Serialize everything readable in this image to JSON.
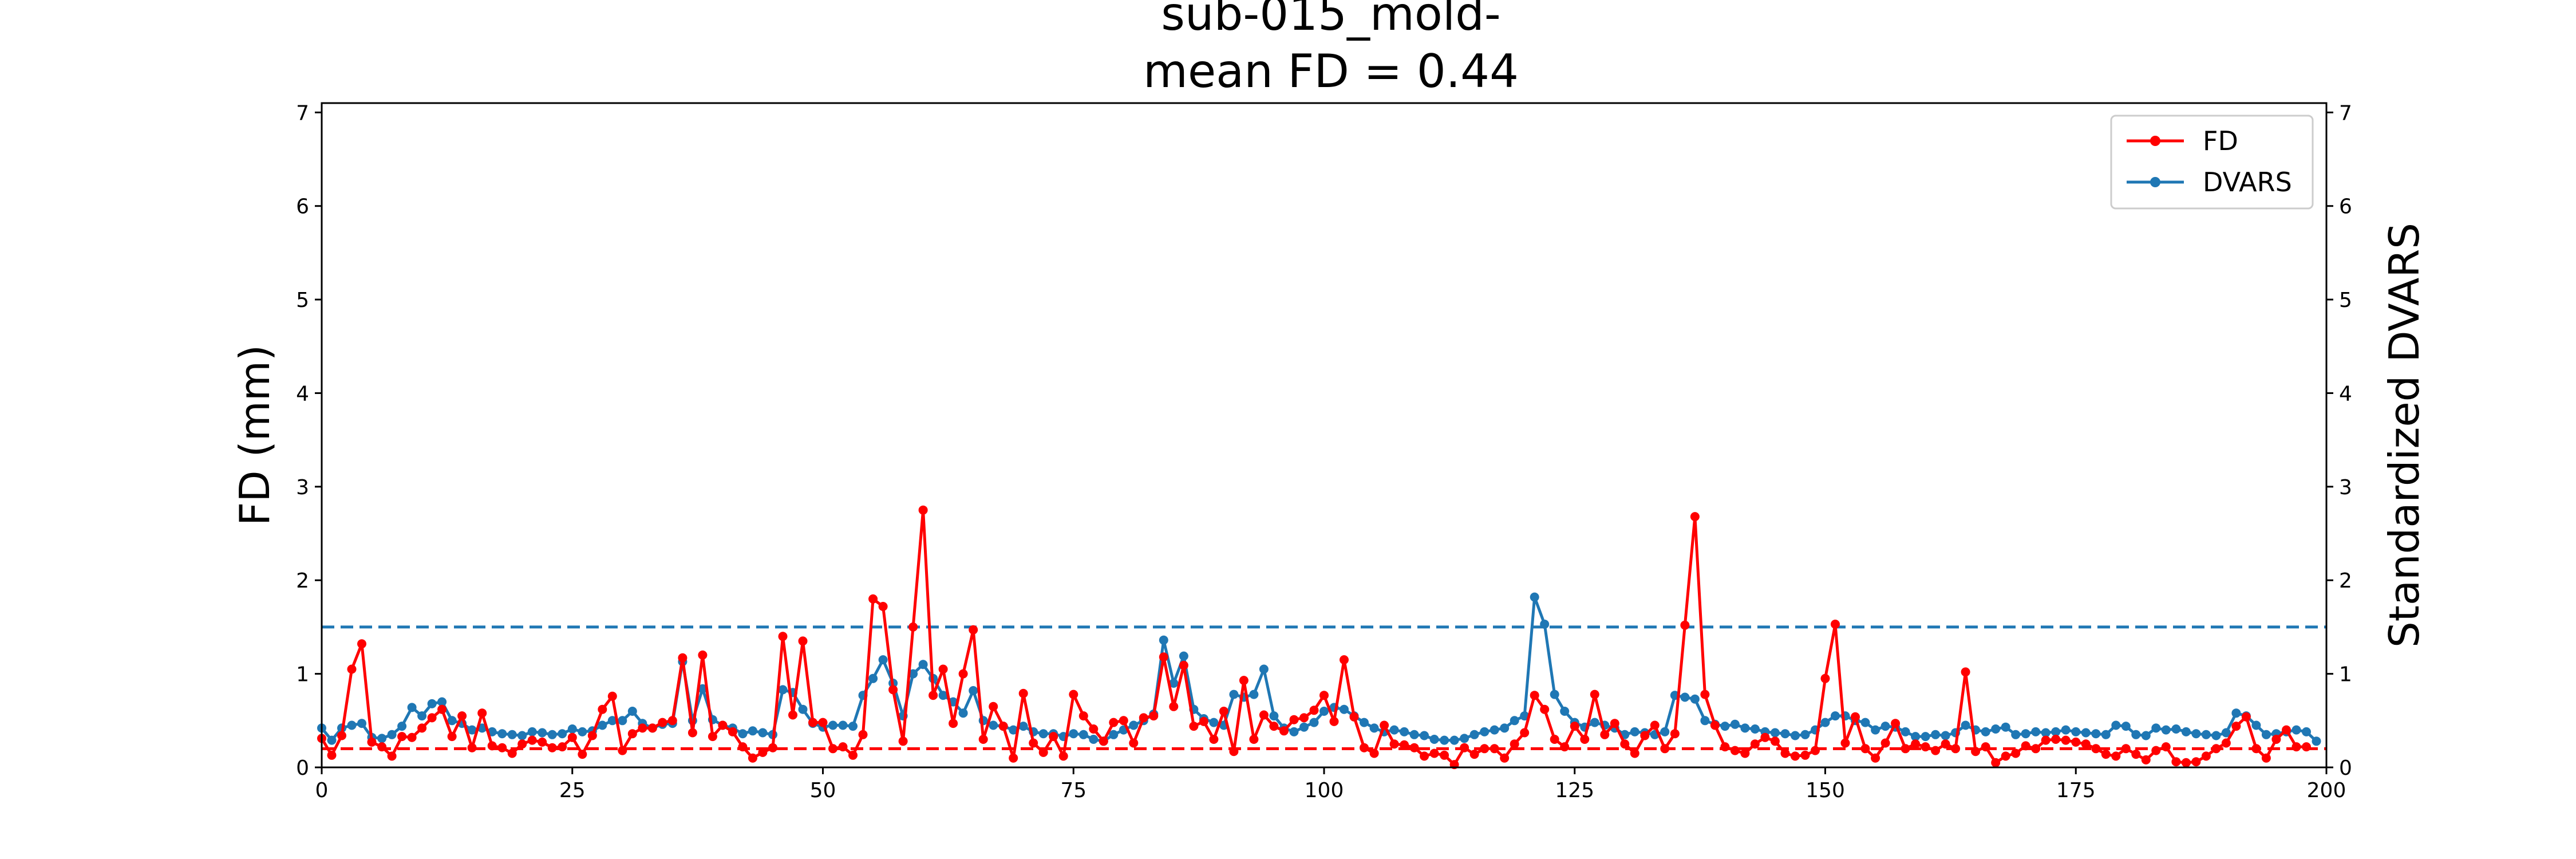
{
  "chart_data": {
    "type": "line",
    "title_line1": "sub-015_mold-",
    "title_line2": "mean FD = 0.44",
    "xlabel": "",
    "ylabel": "FD (mm)",
    "ylabel_right": "Standardized DVARS",
    "xlim": [
      0,
      200
    ],
    "ylim": [
      0,
      7.1
    ],
    "ylim_right": [
      0,
      7.1
    ],
    "x_ticks": [
      0,
      25,
      50,
      75,
      100,
      125,
      150,
      175,
      200
    ],
    "x_tick_labels": [
      "0",
      "25",
      "50",
      "75",
      "100",
      "125",
      "150",
      "175",
      "200"
    ],
    "y_ticks": [
      0,
      1,
      2,
      3,
      4,
      5,
      6,
      7
    ],
    "y_tick_labels": [
      "0",
      "1",
      "2",
      "3",
      "4",
      "5",
      "6",
      "7"
    ],
    "y_right_ticks": [
      0,
      1,
      2,
      3,
      4,
      5,
      6,
      7
    ],
    "y_right_tick_labels": [
      "0",
      "1",
      "2",
      "3",
      "4",
      "5",
      "6",
      "7"
    ],
    "grid": false,
    "legend_position": "top-right",
    "thresholds": [
      {
        "series": "FD",
        "value": 0.2,
        "color": "#ff0000"
      },
      {
        "series": "DVARS",
        "value": 1.5,
        "color": "#1f77b4"
      }
    ],
    "series": [
      {
        "name": "FD",
        "axis": "left",
        "color": "#ff0000",
        "values": [
          0.31,
          0.13,
          0.34,
          1.05,
          1.32,
          0.27,
          0.22,
          0.12,
          0.33,
          0.32,
          0.42,
          0.53,
          0.62,
          0.33,
          0.55,
          0.21,
          0.58,
          0.23,
          0.21,
          0.15,
          0.25,
          0.29,
          0.27,
          0.21,
          0.22,
          0.32,
          0.14,
          0.34,
          0.62,
          0.76,
          0.18,
          0.36,
          0.42,
          0.42,
          0.48,
          0.5,
          1.17,
          0.37,
          1.2,
          0.33,
          0.45,
          0.38,
          0.22,
          0.1,
          0.16,
          0.21,
          1.4,
          0.56,
          1.35,
          0.48,
          0.48,
          0.2,
          0.22,
          0.13,
          0.35,
          1.8,
          1.72,
          0.83,
          0.28,
          1.5,
          2.75,
          0.77,
          1.05,
          0.47,
          1.0,
          1.47,
          0.3,
          0.65,
          0.44,
          0.1,
          0.79,
          0.26,
          0.16,
          0.33,
          0.12,
          0.78,
          0.55,
          0.41,
          0.28,
          0.48,
          0.5,
          0.26,
          0.53,
          0.55,
          1.18,
          0.65,
          1.09,
          0.44,
          0.49,
          0.3,
          0.6,
          0.17,
          0.93,
          0.3,
          0.56,
          0.44,
          0.39,
          0.51,
          0.53,
          0.61,
          0.77,
          0.49,
          1.15,
          0.54,
          0.21,
          0.15,
          0.45,
          0.25,
          0.24,
          0.21,
          0.12,
          0.15,
          0.13,
          0.03,
          0.21,
          0.14,
          0.2,
          0.2,
          0.1,
          0.25,
          0.37,
          0.77,
          0.62,
          0.3,
          0.22,
          0.44,
          0.3,
          0.78,
          0.35,
          0.47,
          0.25,
          0.15,
          0.34,
          0.45,
          0.2,
          0.36,
          1.52,
          2.68,
          0.78,
          0.45,
          0.22,
          0.18,
          0.15,
          0.25,
          0.32,
          0.28,
          0.15,
          0.12,
          0.13,
          0.18,
          0.95,
          1.53,
          0.26,
          0.54,
          0.2,
          0.1,
          0.26,
          0.47,
          0.2,
          0.25,
          0.22,
          0.18,
          0.25,
          0.2,
          1.02,
          0.17,
          0.22,
          0.05,
          0.12,
          0.15,
          0.23,
          0.2,
          0.29,
          0.3,
          0.29,
          0.27,
          0.25,
          0.2,
          0.14,
          0.12,
          0.2,
          0.14,
          0.08,
          0.18,
          0.22,
          0.06,
          0.05,
          0.06,
          0.12,
          0.2,
          0.26,
          0.44,
          0.54,
          0.2,
          0.1,
          0.3,
          0.4,
          0.22,
          0.22
        ]
      },
      {
        "name": "DVARS",
        "axis": "right",
        "color": "#1f77b4",
        "values": [
          0.42,
          0.29,
          0.42,
          0.45,
          0.47,
          0.32,
          0.31,
          0.35,
          0.44,
          0.64,
          0.55,
          0.68,
          0.7,
          0.5,
          0.47,
          0.4,
          0.42,
          0.38,
          0.36,
          0.35,
          0.34,
          0.38,
          0.37,
          0.35,
          0.36,
          0.41,
          0.38,
          0.39,
          0.45,
          0.5,
          0.5,
          0.6,
          0.47,
          0.42,
          0.46,
          0.47,
          1.13,
          0.5,
          0.84,
          0.51,
          0.45,
          0.42,
          0.36,
          0.39,
          0.37,
          0.35,
          0.83,
          0.8,
          0.62,
          0.47,
          0.43,
          0.45,
          0.45,
          0.44,
          0.77,
          0.95,
          1.15,
          0.9,
          0.55,
          1.0,
          1.1,
          0.95,
          0.77,
          0.7,
          0.58,
          0.82,
          0.5,
          0.45,
          0.44,
          0.4,
          0.44,
          0.38,
          0.36,
          0.36,
          0.33,
          0.36,
          0.35,
          0.3,
          0.28,
          0.35,
          0.4,
          0.45,
          0.5,
          0.57,
          1.36,
          0.9,
          1.19,
          0.62,
          0.52,
          0.48,
          0.45,
          0.78,
          0.75,
          0.78,
          1.05,
          0.55,
          0.42,
          0.38,
          0.43,
          0.48,
          0.6,
          0.64,
          0.62,
          0.55,
          0.48,
          0.42,
          0.38,
          0.4,
          0.38,
          0.35,
          0.34,
          0.3,
          0.29,
          0.29,
          0.31,
          0.35,
          0.38,
          0.4,
          0.42,
          0.5,
          0.55,
          1.82,
          1.53,
          0.78,
          0.6,
          0.48,
          0.43,
          0.48,
          0.45,
          0.42,
          0.35,
          0.38,
          0.37,
          0.35,
          0.38,
          0.77,
          0.75,
          0.73,
          0.5,
          0.46,
          0.44,
          0.46,
          0.42,
          0.41,
          0.38,
          0.37,
          0.36,
          0.34,
          0.35,
          0.4,
          0.48,
          0.55,
          0.55,
          0.5,
          0.48,
          0.4,
          0.44,
          0.43,
          0.38,
          0.33,
          0.33,
          0.35,
          0.34,
          0.37,
          0.45,
          0.4,
          0.38,
          0.41,
          0.43,
          0.35,
          0.36,
          0.38,
          0.37,
          0.38,
          0.4,
          0.38,
          0.37,
          0.36,
          0.35,
          0.45,
          0.44,
          0.35,
          0.34,
          0.42,
          0.4,
          0.41,
          0.38,
          0.36,
          0.35,
          0.34,
          0.37,
          0.58,
          0.55,
          0.45,
          0.35,
          0.36,
          0.38,
          0.4,
          0.38,
          0.28
        ]
      }
    ]
  }
}
